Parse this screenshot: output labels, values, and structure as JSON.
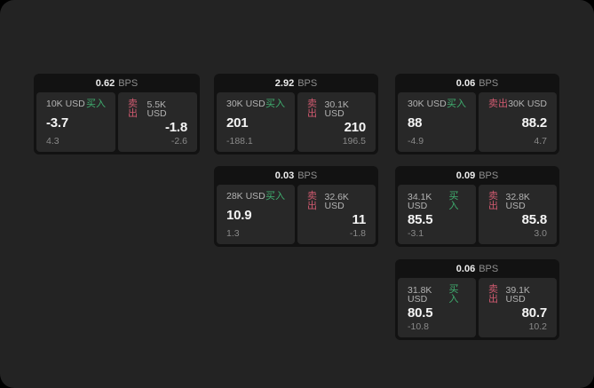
{
  "labels": {
    "bps_unit": "BPS",
    "buy": "买入",
    "sell": "卖出"
  },
  "colors": {
    "buy": "#3fae6f",
    "sell": "#d05a70",
    "background": "#232323",
    "card": "#121212",
    "panel": "#282828"
  },
  "cards": [
    {
      "bps": "0.62",
      "buy": {
        "amount": "10K USD",
        "value": "-3.7",
        "delta": "4.3"
      },
      "sell": {
        "amount": "5.5K USD",
        "value": "-1.8",
        "delta": "-2.6"
      }
    },
    {
      "bps": "2.92",
      "buy": {
        "amount": "30K USD",
        "value": "201",
        "delta": "-188.1"
      },
      "sell": {
        "amount": "30.1K USD",
        "value": "210",
        "delta": "196.5"
      }
    },
    {
      "bps": "0.06",
      "buy": {
        "amount": "30K USD",
        "value": "88",
        "delta": "-4.9"
      },
      "sell": {
        "amount": "30K USD",
        "value": "88.2",
        "delta": "4.7"
      }
    },
    {
      "bps": "0.03",
      "buy": {
        "amount": "28K USD",
        "value": "10.9",
        "delta": "1.3"
      },
      "sell": {
        "amount": "32.6K USD",
        "value": "11",
        "delta": "-1.8"
      }
    },
    {
      "bps": "0.09",
      "buy": {
        "amount": "34.1K USD",
        "value": "85.5",
        "delta": "-3.1"
      },
      "sell": {
        "amount": "32.8K USD",
        "value": "85.8",
        "delta": "3.0"
      }
    },
    {
      "bps": "0.06",
      "buy": {
        "amount": "31.8K USD",
        "value": "80.5",
        "delta": "-10.8"
      },
      "sell": {
        "amount": "39.1K USD",
        "value": "80.7",
        "delta": "10.2"
      }
    }
  ]
}
